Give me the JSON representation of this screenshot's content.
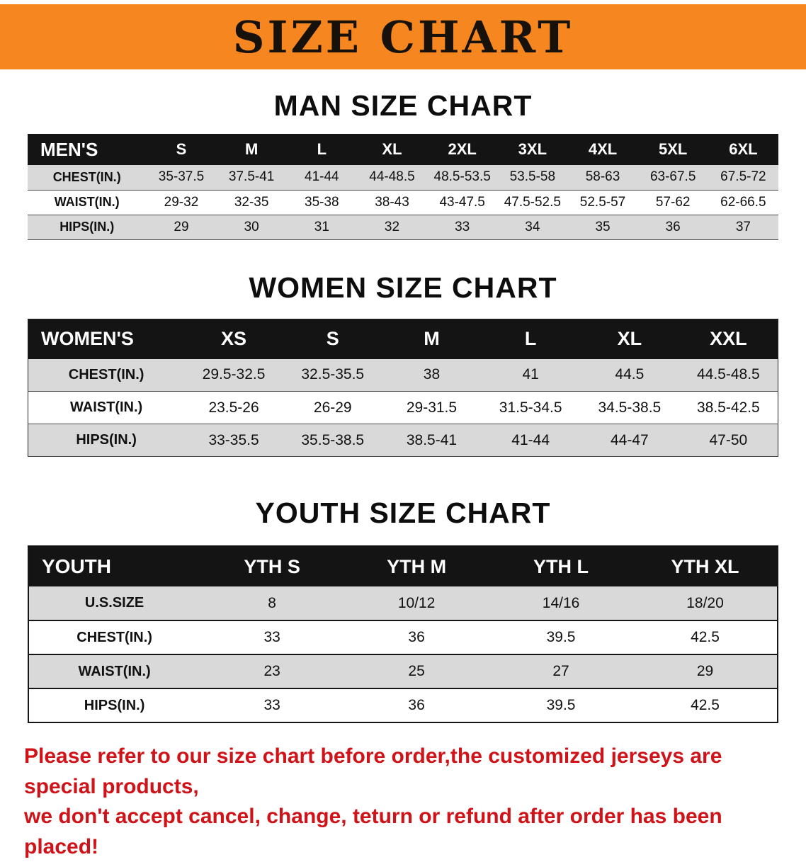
{
  "banner": {
    "title": "SIZE CHART"
  },
  "colors": {
    "banner_bg": "#f6861f",
    "table_header_bg": "#141414",
    "stripe": "#d9d9d9",
    "notice_red": "#cf1318"
  },
  "tables": [
    {
      "title": "MAN SIZE CHART",
      "header": [
        "MEN'S",
        "S",
        "M",
        "L",
        "XL",
        "2XL",
        "3XL",
        "4XL",
        "5XL",
        "6XL"
      ],
      "rows": [
        [
          "CHEST(IN.)",
          "35-37.5",
          "37.5-41",
          "41-44",
          "44-48.5",
          "48.5-53.5",
          "53.5-58",
          "58-63",
          "63-67.5",
          "67.5-72"
        ],
        [
          "WAIST(IN.)",
          "29-32",
          "32-35",
          "35-38",
          "38-43",
          "43-47.5",
          "47.5-52.5",
          "52.5-57",
          "57-62",
          "62-66.5"
        ],
        [
          "HIPS(IN.)",
          "29",
          "30",
          "31",
          "32",
          "33",
          "34",
          "35",
          "36",
          "37"
        ]
      ]
    },
    {
      "title": "WOMEN SIZE CHART",
      "header": [
        "WOMEN'S",
        "XS",
        "S",
        "M",
        "L",
        "XL",
        "XXL"
      ],
      "rows": [
        [
          "CHEST(IN.)",
          "29.5-32.5",
          "32.5-35.5",
          "38",
          "41",
          "44.5",
          "44.5-48.5"
        ],
        [
          "WAIST(IN.)",
          "23.5-26",
          "26-29",
          "29-31.5",
          "31.5-34.5",
          "34.5-38.5",
          "38.5-42.5"
        ],
        [
          "HIPS(IN.)",
          "33-35.5",
          "35.5-38.5",
          "38.5-41",
          "41-44",
          "44-47",
          "47-50"
        ]
      ]
    },
    {
      "title": "YOUTH SIZE CHART",
      "header": [
        "YOUTH",
        "YTH S",
        "YTH M",
        "YTH L",
        "YTH XL"
      ],
      "rows": [
        [
          "U.S.SIZE",
          "8",
          "10/12",
          "14/16",
          "18/20"
        ],
        [
          "CHEST(IN.)",
          "33",
          "36",
          "39.5",
          "42.5"
        ],
        [
          "WAIST(IN.)",
          "23",
          "25",
          "27",
          "29"
        ],
        [
          "HIPS(IN.)",
          "33",
          "36",
          "39.5",
          "42.5"
        ]
      ]
    }
  ],
  "footer": {
    "line1": "Please refer to our size chart before order,the customized jerseys are special products,",
    "line2": "we don't accept cancel, change, teturn or refund after order has been placed!"
  }
}
